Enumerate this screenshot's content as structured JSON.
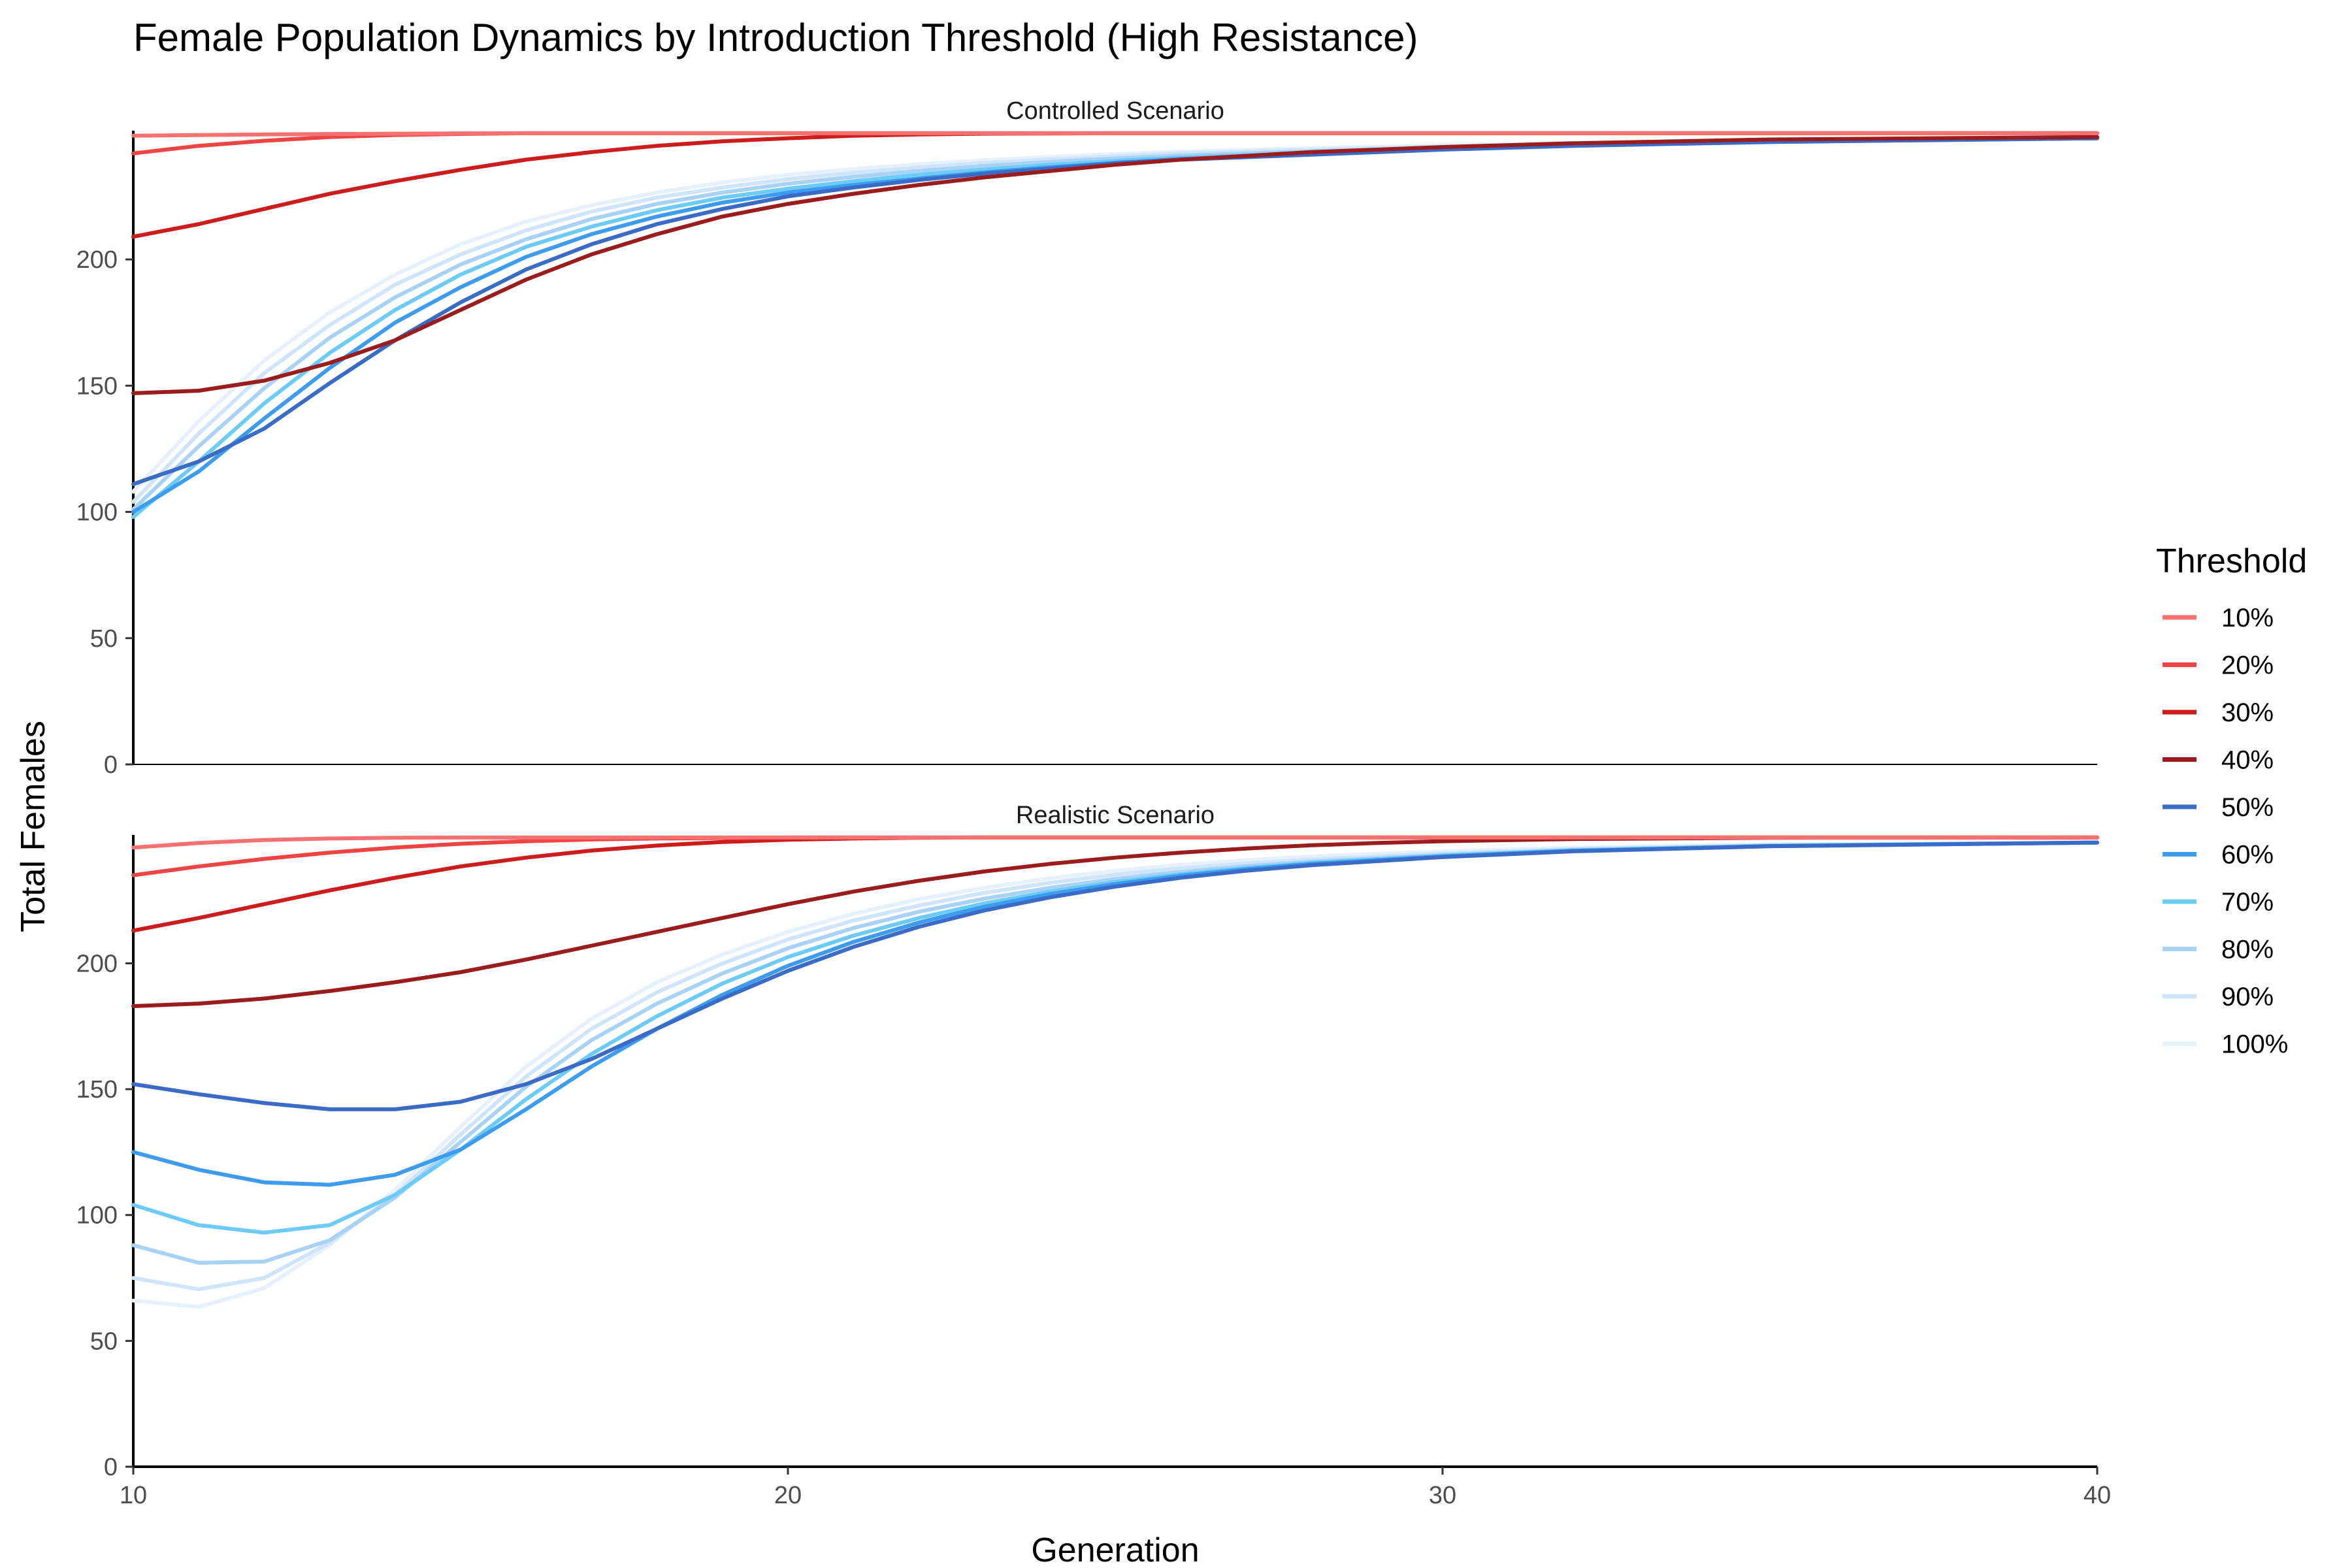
{
  "chart_data": {
    "type": "line",
    "title": "Female Population Dynamics by Introduction Threshold (High Resistance)",
    "xlabel": "Generation",
    "ylabel": "Total Females",
    "xlim": [
      10,
      40
    ],
    "ylim": [
      0,
      250
    ],
    "x_ticks": [
      "10",
      "20",
      "30",
      "40"
    ],
    "y_ticks": [
      "0",
      "50",
      "100",
      "150",
      "200"
    ],
    "legend": {
      "title": "Threshold",
      "position": "right"
    },
    "grid": false,
    "series_meta": [
      {
        "name": "10%",
        "color": "#f87171"
      },
      {
        "name": "20%",
        "color": "#ef4444"
      },
      {
        "name": "30%",
        "color": "#cc1c1c"
      },
      {
        "name": "40%",
        "color": "#9b1c1c"
      },
      {
        "name": "50%",
        "color": "#3a6bc6"
      },
      {
        "name": "60%",
        "color": "#3d9cf0"
      },
      {
        "name": "70%",
        "color": "#6dccf7"
      },
      {
        "name": "80%",
        "color": "#a9d2f7"
      },
      {
        "name": "90%",
        "color": "#cfe5fb"
      },
      {
        "name": "100%",
        "color": "#e6f1fd"
      }
    ],
    "panels": [
      {
        "strip": "Controlled Scenario",
        "series": [
          {
            "name": "10%",
            "x": [
              10,
              12,
              14,
              16,
              18,
              20,
              25,
              30,
              35,
              40
            ],
            "y": [
              249,
              249.5,
              249.8,
              250,
              250,
              250,
              250,
              250,
              250,
              250
            ]
          },
          {
            "name": "20%",
            "x": [
              10,
              11,
              12,
              13,
              14,
              15,
              16,
              18,
              20,
              25,
              30,
              40
            ],
            "y": [
              242,
              245,
              247,
              248.5,
              249.3,
              249.7,
              250,
              250,
              250,
              250,
              250,
              250
            ]
          },
          {
            "name": "30%",
            "x": [
              10,
              11,
              12,
              13,
              14,
              15,
              16,
              17,
              18,
              19,
              20,
              21,
              22,
              23,
              25,
              28,
              30,
              35,
              40
            ],
            "y": [
              209,
              214,
              220,
              226,
              231,
              235.5,
              239.5,
              242.5,
              245,
              246.8,
              248,
              249,
              249.5,
              249.8,
              250,
              250,
              250,
              250,
              250
            ]
          },
          {
            "name": "40%",
            "x": [
              10,
              11,
              12,
              13,
              14,
              15,
              16,
              17,
              18,
              19,
              20,
              21,
              22,
              23,
              24,
              25,
              26,
              27,
              28,
              30,
              32,
              35,
              40
            ],
            "y": [
              147,
              148,
              152,
              159,
              168,
              180,
              192,
              202,
              210,
              217,
              222,
              226,
              229.5,
              232.5,
              235,
              237.5,
              239.5,
              241,
              242.5,
              244.5,
              246,
              247.5,
              248.5
            ]
          },
          {
            "name": "50%",
            "x": [
              10,
              11,
              12,
              13,
              14,
              15,
              16,
              17,
              18,
              19,
              20,
              21,
              22,
              23,
              24,
              25,
              26,
              28,
              30,
              32,
              35,
              40
            ],
            "y": [
              111,
              120,
              133,
              151,
              168,
              183,
              196,
              206,
              214,
              220,
              225,
              228.5,
              231.5,
              234,
              236,
              238,
              239.5,
              241.5,
              243.5,
              245,
              246.5,
              248
            ]
          },
          {
            "name": "60%",
            "x": [
              10,
              11,
              12,
              13,
              14,
              15,
              16,
              17,
              18,
              19,
              20,
              21,
              22,
              23,
              24,
              25,
              26,
              28,
              30,
              32,
              35,
              40
            ],
            "y": [
              100,
              116,
              137,
              157,
              175,
              189,
              201,
              210,
              217,
              222.5,
              226.5,
              229.5,
              232,
              234.5,
              236.5,
              238.3,
              239.8,
              241.8,
              243.6,
              245.1,
              246.6,
              248
            ]
          },
          {
            "name": "70%",
            "x": [
              10,
              11,
              12,
              13,
              14,
              15,
              16,
              17,
              18,
              19,
              20,
              21,
              22,
              23,
              24,
              25,
              26,
              28,
              30,
              32,
              35,
              40
            ],
            "y": [
              98,
              120,
              143,
              163,
              180,
              194,
              205,
              213,
              219.5,
              224.5,
              228,
              231,
              233.5,
              235.6,
              237.5,
              239,
              240.4,
              242.2,
              243.8,
              245.2,
              246.7,
              248
            ]
          },
          {
            "name": "80%",
            "x": [
              10,
              11,
              12,
              13,
              14,
              15,
              16,
              17,
              18,
              19,
              20,
              21,
              22,
              23,
              24,
              25,
              26,
              28,
              30,
              32,
              35,
              40
            ],
            "y": [
              101,
              126,
              149,
              169,
              185,
              198,
              208,
              216,
              222,
              226.5,
              230,
              232.7,
              235,
              237,
              238.6,
              240,
              241.2,
              242.8,
              244.2,
              245.5,
              246.8,
              248
            ]
          },
          {
            "name": "90%",
            "x": [
              10,
              11,
              12,
              13,
              14,
              15,
              16,
              17,
              18,
              19,
              20,
              21,
              22,
              23,
              24,
              25,
              26,
              28,
              30,
              32,
              35,
              40
            ],
            "y": [
              104,
              131,
              155,
              174,
              190,
              202,
              211.5,
              219,
              224.5,
              228.5,
              231.8,
              234.3,
              236.4,
              238.2,
              239.6,
              240.9,
              242,
              243.5,
              244.7,
              245.8,
              247,
              248
            ]
          },
          {
            "name": "100%",
            "x": [
              10,
              11,
              12,
              13,
              14,
              15,
              16,
              17,
              18,
              19,
              20,
              21,
              22,
              23,
              24,
              25,
              26,
              28,
              30,
              32,
              35,
              40
            ],
            "y": [
              108,
              136,
              160,
              179,
              194,
              206,
              215,
              221.5,
              226.5,
              230.5,
              233.5,
              235.8,
              237.7,
              239.3,
              240.6,
              241.7,
              242.7,
              244.1,
              245.2,
              246.2,
              247.2,
              248
            ]
          }
        ]
      },
      {
        "strip": "Realistic Scenario",
        "series": [
          {
            "name": "10%",
            "x": [
              10,
              11,
              12,
              13,
              14,
              15,
              16,
              18,
              20,
              25,
              30,
              40
            ],
            "y": [
              246,
              247.8,
              249,
              249.6,
              249.9,
              250,
              250,
              250,
              250,
              250,
              250,
              250
            ]
          },
          {
            "name": "20%",
            "x": [
              10,
              11,
              12,
              13,
              14,
              15,
              16,
              17,
              18,
              19,
              20,
              21,
              22,
              25,
              30,
              40
            ],
            "y": [
              235,
              238.5,
              241.5,
              244,
              246,
              247.5,
              248.5,
              249.2,
              249.6,
              249.8,
              250,
              250,
              250,
              250,
              250,
              250
            ]
          },
          {
            "name": "30%",
            "x": [
              10,
              11,
              12,
              13,
              14,
              15,
              16,
              17,
              18,
              19,
              20,
              21,
              22,
              23,
              24,
              25,
              28,
              30,
              35,
              40
            ],
            "y": [
              213,
              218,
              223.5,
              229,
              234,
              238.5,
              242,
              244.8,
              246.8,
              248.2,
              249.1,
              249.6,
              249.9,
              250,
              250,
              250,
              250,
              250,
              250,
              250
            ]
          },
          {
            "name": "40%",
            "x": [
              10,
              11,
              12,
              13,
              14,
              15,
              16,
              17,
              18,
              19,
              20,
              21,
              22,
              23,
              24,
              25,
              26,
              27,
              28,
              29,
              30,
              32,
              35,
              40
            ],
            "y": [
              183,
              184,
              186,
              189,
              192.5,
              196.5,
              201.5,
              207,
              212.5,
              218,
              223.5,
              228.5,
              232.8,
              236.5,
              239.5,
              242,
              244,
              245.6,
              246.9,
              247.8,
              248.5,
              249.4,
              249.9,
              250
            ]
          },
          {
            "name": "50%",
            "x": [
              10,
              11,
              12,
              13,
              14,
              15,
              16,
              17,
              18,
              19,
              20,
              21,
              22,
              23,
              24,
              25,
              26,
              27,
              28,
              30,
              32,
              35,
              40
            ],
            "y": [
              152,
              148,
              144.5,
              142,
              142,
              145,
              152,
              162,
              174,
              186,
              197,
              206.5,
              214.5,
              221,
              226.2,
              230.5,
              234,
              236.8,
              239,
              242.2,
              244.5,
              246.5,
              248
            ]
          },
          {
            "name": "60%",
            "x": [
              10,
              11,
              12,
              13,
              14,
              15,
              16,
              17,
              18,
              19,
              20,
              21,
              22,
              23,
              24,
              25,
              26,
              27,
              28,
              30,
              32,
              35,
              40
            ],
            "y": [
              125,
              118,
              113,
              112,
              116,
              126,
              142,
              159,
              174,
              187.5,
              199,
              208.5,
              216.2,
              222.5,
              227.5,
              231.5,
              234.8,
              237.4,
              239.5,
              242.5,
              244.7,
              246.6,
              248
            ]
          },
          {
            "name": "70%",
            "x": [
              10,
              11,
              12,
              13,
              14,
              15,
              16,
              17,
              18,
              19,
              20,
              21,
              22,
              23,
              24,
              25,
              26,
              27,
              28,
              30,
              32,
              35,
              40
            ],
            "y": [
              104,
              96,
              93,
              96,
              108,
              126,
              146,
              164,
              179,
              192,
              202.5,
              211,
              218,
              223.8,
              228.5,
              232.3,
              235.4,
              237.9,
              239.9,
              242.8,
              244.9,
              246.7,
              248
            ]
          },
          {
            "name": "80%",
            "x": [
              10,
              11,
              12,
              13,
              14,
              15,
              16,
              17,
              18,
              19,
              20,
              21,
              22,
              23,
              24,
              25,
              26,
              27,
              28,
              30,
              32,
              35,
              40
            ],
            "y": [
              88,
              81,
              81.5,
              90,
              107,
              129,
              151,
              169.5,
              184,
              196,
              206,
              214,
              220.5,
              225.7,
              230,
              233.5,
              236.3,
              238.6,
              240.4,
              243.1,
              245.1,
              246.8,
              248
            ]
          },
          {
            "name": "90%",
            "x": [
              10,
              11,
              12,
              13,
              14,
              15,
              16,
              17,
              18,
              19,
              20,
              21,
              22,
              23,
              24,
              25,
              26,
              27,
              28,
              30,
              32,
              35,
              40
            ],
            "y": [
              75,
              70.5,
              75,
              89,
              108,
              132,
              155,
              174,
              188.5,
              200,
              209.5,
              217,
              223,
              228,
              232,
              235.2,
              237.7,
              239.7,
              241.3,
              243.7,
              245.4,
              247,
              248
            ]
          },
          {
            "name": "100%",
            "x": [
              10,
              11,
              12,
              13,
              14,
              15,
              16,
              17,
              18,
              19,
              20,
              21,
              22,
              23,
              24,
              25,
              26,
              27,
              28,
              30,
              32,
              35,
              40
            ],
            "y": [
              66,
              63.5,
              71,
              88,
              110,
              135,
              159,
              178,
              192.5,
              203.5,
              212.5,
              219.7,
              225.5,
              230,
              233.8,
              236.8,
              239.1,
              241,
              242.5,
              244.5,
              246,
              247.3,
              248
            ]
          }
        ]
      }
    ]
  }
}
